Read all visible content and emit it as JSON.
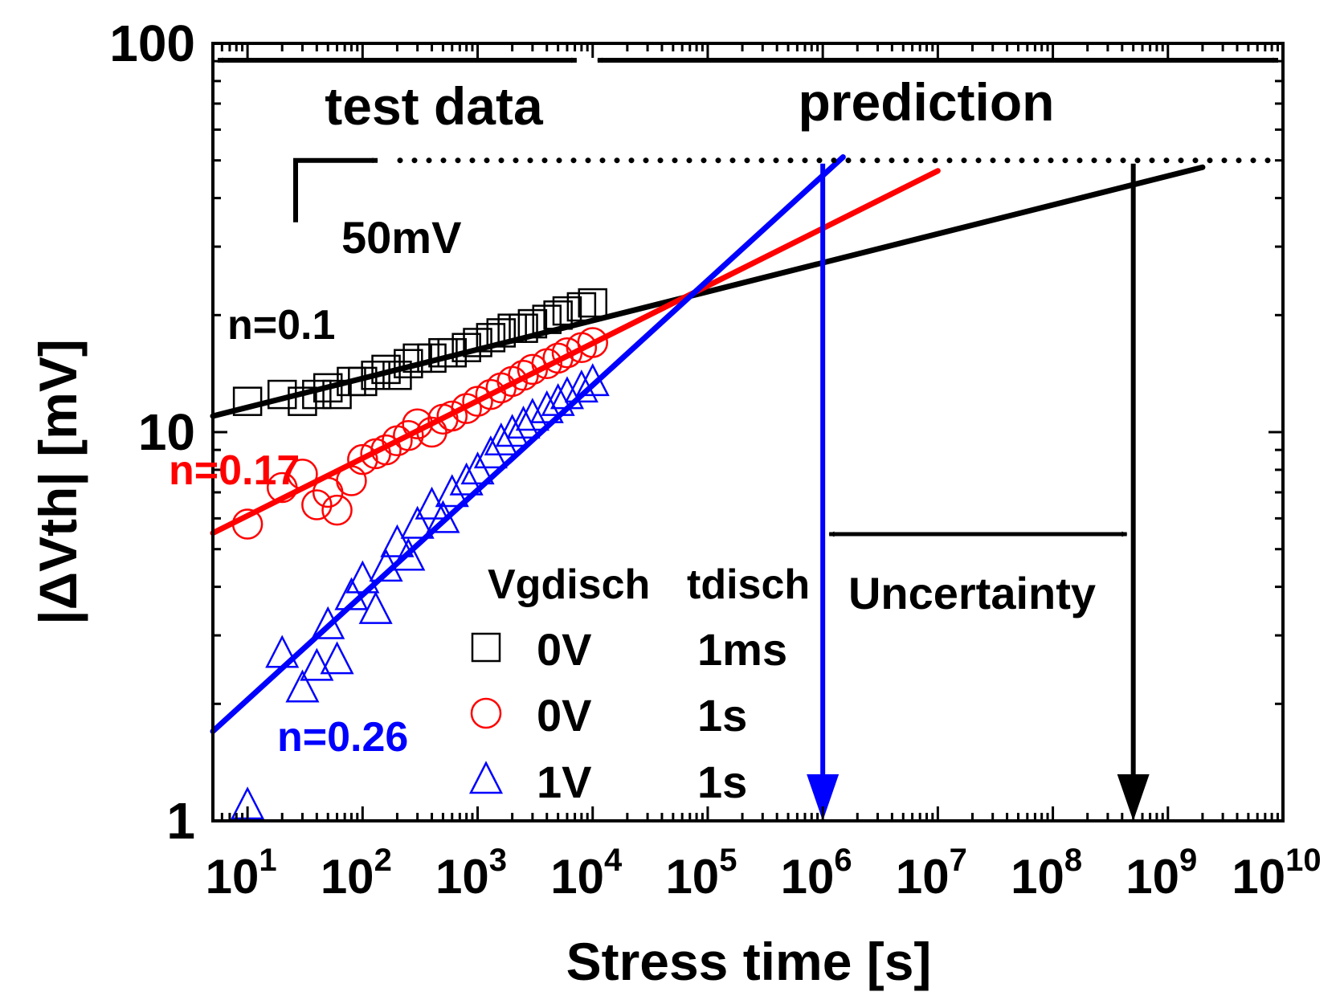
{
  "chart_data": {
    "type": "scatter",
    "title": "",
    "xlabel": "Stress time [s]",
    "ylabel": "|ΔVth| [mV]",
    "xscale": "log",
    "yscale": "log",
    "xlim": [
      5,
      10000000000
    ],
    "ylim": [
      1,
      100
    ],
    "x_tick_exponents": [
      1,
      2,
      3,
      4,
      5,
      6,
      7,
      8,
      9,
      10
    ],
    "x_tick_base": "10",
    "y_ticks": [
      1,
      10,
      100
    ],
    "y_tick_labels": [
      "1",
      "10",
      "100"
    ],
    "grid": false,
    "legend": {
      "placement": "bottom-center",
      "headers": [
        "Vgdisch",
        "tdisch"
      ],
      "entries": [
        {
          "marker": "square",
          "color": "#000000",
          "vgdisch": "0V",
          "tdisch": "1ms"
        },
        {
          "marker": "circle",
          "color": "#ff0000",
          "vgdisch": "0V",
          "tdisch": "1s"
        },
        {
          "marker": "triangle",
          "color": "#0000ff",
          "vgdisch": "1V",
          "tdisch": "1s"
        }
      ]
    },
    "series": [
      {
        "color": "#000000",
        "marker": "square",
        "points": [
          [
            10,
            12
          ],
          [
            20,
            12.5
          ],
          [
            30,
            12
          ],
          [
            40,
            12.5
          ],
          [
            50,
            13
          ],
          [
            60,
            12.5
          ],
          [
            80,
            13.5
          ],
          [
            100,
            13.5
          ],
          [
            130,
            14
          ],
          [
            160,
            14.5
          ],
          [
            200,
            14
          ],
          [
            250,
            15
          ],
          [
            300,
            15.5
          ],
          [
            400,
            15.5
          ],
          [
            500,
            16
          ],
          [
            600,
            16
          ],
          [
            800,
            16.5
          ],
          [
            1000,
            17
          ],
          [
            1300,
            17.5
          ],
          [
            1600,
            18
          ],
          [
            2000,
            18.5
          ],
          [
            2500,
            18.5
          ],
          [
            3000,
            19
          ],
          [
            4000,
            19.5
          ],
          [
            5000,
            20
          ],
          [
            6000,
            20.5
          ],
          [
            8000,
            21
          ],
          [
            10000,
            21.5
          ]
        ],
        "fit": {
          "label": "n=0.1",
          "exponent": 0.1,
          "x": [
            5,
            2000000000
          ],
          "y": [
            11,
            48
          ]
        }
      },
      {
        "color": "#ff0000",
        "marker": "circle",
        "points": [
          [
            10,
            5.8
          ],
          [
            20,
            7.2
          ],
          [
            30,
            7.8
          ],
          [
            40,
            6.5
          ],
          [
            50,
            7
          ],
          [
            60,
            6.3
          ],
          [
            80,
            7.5
          ],
          [
            100,
            8.5
          ],
          [
            130,
            8.8
          ],
          [
            160,
            9
          ],
          [
            200,
            9.5
          ],
          [
            250,
            9.8
          ],
          [
            300,
            10.5
          ],
          [
            400,
            10
          ],
          [
            500,
            10.8
          ],
          [
            600,
            11
          ],
          [
            800,
            11.5
          ],
          [
            1000,
            12
          ],
          [
            1300,
            12.5
          ],
          [
            1600,
            13
          ],
          [
            2000,
            13.5
          ],
          [
            2500,
            14
          ],
          [
            3000,
            14.5
          ],
          [
            4000,
            15
          ],
          [
            5000,
            15.5
          ],
          [
            6000,
            16
          ],
          [
            8000,
            16.5
          ],
          [
            10000,
            17
          ]
        ],
        "fit": {
          "label": "n=0.17",
          "exponent": 0.17,
          "x": [
            5,
            10000000
          ],
          "y": [
            5.5,
            47
          ]
        }
      },
      {
        "color": "#0000ff",
        "marker": "triangle",
        "points": [
          [
            10,
            1.1
          ],
          [
            20,
            2.7
          ],
          [
            30,
            2.2
          ],
          [
            40,
            2.5
          ],
          [
            50,
            3.2
          ],
          [
            60,
            2.6
          ],
          [
            80,
            3.8
          ],
          [
            100,
            4.2
          ],
          [
            130,
            3.5
          ],
          [
            160,
            4.5
          ],
          [
            200,
            5.2
          ],
          [
            250,
            4.8
          ],
          [
            300,
            5.8
          ],
          [
            400,
            6.5
          ],
          [
            500,
            6
          ],
          [
            600,
            7
          ],
          [
            800,
            7.5
          ],
          [
            1000,
            8
          ],
          [
            1300,
            8.8
          ],
          [
            1600,
            9.5
          ],
          [
            2000,
            10
          ],
          [
            2500,
            10.5
          ],
          [
            3000,
            11
          ],
          [
            4000,
            11.5
          ],
          [
            5000,
            12
          ],
          [
            6000,
            12.5
          ],
          [
            8000,
            13
          ],
          [
            10000,
            13.5
          ]
        ],
        "fit": {
          "label": "n=0.26",
          "exponent": 0.26,
          "x": [
            5,
            1500000
          ],
          "y": [
            1.7,
            51
          ]
        }
      }
    ],
    "threshold": {
      "label": "50mV",
      "value": 50
    },
    "annotations": {
      "test_data": "test data",
      "prediction": "prediction",
      "uncertainty": "Uncertainty",
      "lifetime_blue_x": 1000000,
      "lifetime_black_x": 500000000,
      "range_split_x": 8000
    }
  }
}
